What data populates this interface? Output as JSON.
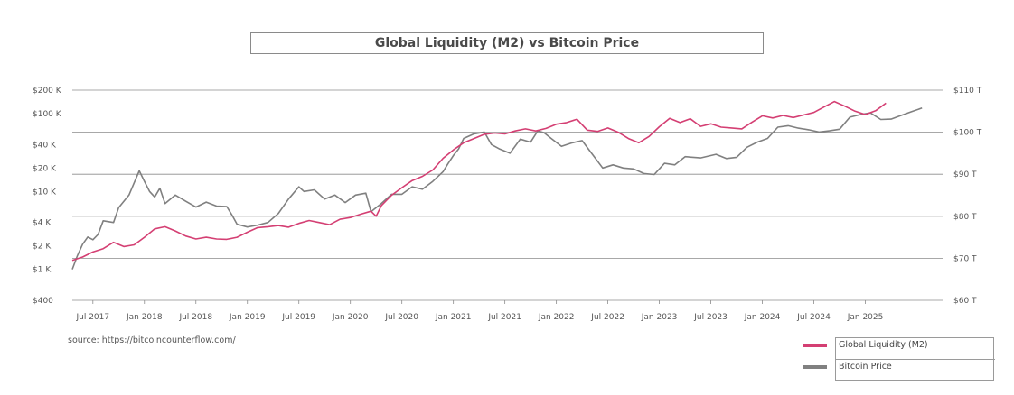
{
  "chart_data": {
    "type": "line",
    "title": "Global Liquidity (M2) vs Bitcoin Price",
    "source": "source: https://bitcoincounterflow.com/",
    "y_left": {
      "scale": "log",
      "range": [
        400,
        200000
      ],
      "ticks": [
        {
          "value": 200000,
          "label": "$200 K"
        },
        {
          "value": 100000,
          "label": "$100 K"
        },
        {
          "value": 40000,
          "label": "$40 K"
        },
        {
          "value": 20000,
          "label": "$20 K"
        },
        {
          "value": 10000,
          "label": "$10 K"
        },
        {
          "value": 4000,
          "label": "$4 K"
        },
        {
          "value": 2000,
          "label": "$2 K"
        },
        {
          "value": 1000,
          "label": "$1 K"
        },
        {
          "value": 400,
          "label": "$400"
        }
      ]
    },
    "y_right": {
      "scale": "linear",
      "range": [
        60,
        110
      ],
      "unit": "T",
      "ticks": [
        {
          "value": 110,
          "label": "$110 T"
        },
        {
          "value": 100,
          "label": "$100 T"
        },
        {
          "value": 90,
          "label": "$90 T"
        },
        {
          "value": 80,
          "label": "$80 T"
        },
        {
          "value": 70,
          "label": "$70 T"
        },
        {
          "value": 60,
          "label": "$60 T"
        }
      ]
    },
    "x_axis": {
      "range": [
        2017.3,
        2025.75
      ],
      "ticks": [
        {
          "value": 2017.5,
          "label": "Jul 2017"
        },
        {
          "value": 2018.0,
          "label": "Jan 2018"
        },
        {
          "value": 2018.5,
          "label": "Jul 2018"
        },
        {
          "value": 2019.0,
          "label": "Jan 2019"
        },
        {
          "value": 2019.5,
          "label": "Jul 2019"
        },
        {
          "value": 2020.0,
          "label": "Jan 2020"
        },
        {
          "value": 2020.5,
          "label": "Jul 2020"
        },
        {
          "value": 2021.0,
          "label": "Jan 2021"
        },
        {
          "value": 2021.5,
          "label": "Jul 2021"
        },
        {
          "value": 2022.0,
          "label": "Jan 2022"
        },
        {
          "value": 2022.5,
          "label": "Jul 2022"
        },
        {
          "value": 2023.0,
          "label": "Jan 2023"
        },
        {
          "value": 2023.5,
          "label": "Jul 2023"
        },
        {
          "value": 2024.0,
          "label": "Jan 2024"
        },
        {
          "value": 2024.5,
          "label": "Jul 2024"
        },
        {
          "value": 2025.0,
          "label": "Jan 2025"
        }
      ]
    },
    "gridlines_at_right_values": [
      110,
      100,
      90,
      80,
      70
    ],
    "series": [
      {
        "name": "Global Liquidity (M2)",
        "axis": "right",
        "color": "#d43f73",
        "unit": "$ T",
        "points": [
          [
            2017.3,
            69.5
          ],
          [
            2017.4,
            70.3
          ],
          [
            2017.5,
            71.5
          ],
          [
            2017.6,
            72.3
          ],
          [
            2017.7,
            73.8
          ],
          [
            2017.8,
            72.8
          ],
          [
            2017.9,
            73.2
          ],
          [
            2018.0,
            75.0
          ],
          [
            2018.1,
            77.0
          ],
          [
            2018.2,
            77.5
          ],
          [
            2018.3,
            76.5
          ],
          [
            2018.4,
            75.3
          ],
          [
            2018.5,
            74.6
          ],
          [
            2018.6,
            75.0
          ],
          [
            2018.7,
            74.6
          ],
          [
            2018.8,
            74.5
          ],
          [
            2018.9,
            75.0
          ],
          [
            2019.0,
            76.2
          ],
          [
            2019.1,
            77.3
          ],
          [
            2019.2,
            77.5
          ],
          [
            2019.3,
            77.8
          ],
          [
            2019.4,
            77.4
          ],
          [
            2019.5,
            78.3
          ],
          [
            2019.6,
            79.0
          ],
          [
            2019.7,
            78.5
          ],
          [
            2019.8,
            78.0
          ],
          [
            2019.9,
            79.3
          ],
          [
            2020.0,
            79.7
          ],
          [
            2020.1,
            80.5
          ],
          [
            2020.2,
            81.2
          ],
          [
            2020.25,
            80.0
          ],
          [
            2020.3,
            82.5
          ],
          [
            2020.4,
            85.0
          ],
          [
            2020.5,
            86.8
          ],
          [
            2020.6,
            88.5
          ],
          [
            2020.7,
            89.5
          ],
          [
            2020.8,
            91.0
          ],
          [
            2020.9,
            93.8
          ],
          [
            2021.0,
            95.8
          ],
          [
            2021.1,
            97.5
          ],
          [
            2021.2,
            98.5
          ],
          [
            2021.3,
            99.5
          ],
          [
            2021.4,
            99.8
          ],
          [
            2021.5,
            99.6
          ],
          [
            2021.6,
            100.3
          ],
          [
            2021.7,
            100.8
          ],
          [
            2021.8,
            100.3
          ],
          [
            2021.9,
            100.9
          ],
          [
            2022.0,
            101.9
          ],
          [
            2022.1,
            102.3
          ],
          [
            2022.2,
            103.1
          ],
          [
            2022.3,
            100.5
          ],
          [
            2022.4,
            100.2
          ],
          [
            2022.5,
            101.0
          ],
          [
            2022.6,
            100.0
          ],
          [
            2022.7,
            98.5
          ],
          [
            2022.8,
            97.5
          ],
          [
            2022.9,
            99.0
          ],
          [
            2023.0,
            101.3
          ],
          [
            2023.1,
            103.3
          ],
          [
            2023.2,
            102.3
          ],
          [
            2023.3,
            103.2
          ],
          [
            2023.4,
            101.4
          ],
          [
            2023.5,
            102.0
          ],
          [
            2023.6,
            101.2
          ],
          [
            2023.7,
            101.0
          ],
          [
            2023.8,
            100.8
          ],
          [
            2023.9,
            102.4
          ],
          [
            2024.0,
            103.9
          ],
          [
            2024.1,
            103.4
          ],
          [
            2024.2,
            104.0
          ],
          [
            2024.3,
            103.5
          ],
          [
            2024.4,
            104.1
          ],
          [
            2024.5,
            104.7
          ],
          [
            2024.6,
            106.0
          ],
          [
            2024.7,
            107.3
          ],
          [
            2024.8,
            106.2
          ],
          [
            2024.9,
            105.0
          ],
          [
            2025.0,
            104.2
          ],
          [
            2025.1,
            105.1
          ],
          [
            2025.2,
            106.9
          ]
        ]
      },
      {
        "name": "Bitcoin Price",
        "axis": "left",
        "color": "#808080",
        "unit": "$",
        "points": [
          [
            2017.3,
            1000
          ],
          [
            2017.35,
            1500
          ],
          [
            2017.4,
            2100
          ],
          [
            2017.45,
            2600
          ],
          [
            2017.5,
            2400
          ],
          [
            2017.55,
            2800
          ],
          [
            2017.6,
            4200
          ],
          [
            2017.7,
            4000
          ],
          [
            2017.75,
            6200
          ],
          [
            2017.85,
            9000
          ],
          [
            2017.95,
            18500
          ],
          [
            2018.0,
            13500
          ],
          [
            2018.05,
            10000
          ],
          [
            2018.1,
            8500
          ],
          [
            2018.15,
            11000
          ],
          [
            2018.2,
            7000
          ],
          [
            2018.3,
            9000
          ],
          [
            2018.4,
            7500
          ],
          [
            2018.5,
            6300
          ],
          [
            2018.6,
            7300
          ],
          [
            2018.7,
            6500
          ],
          [
            2018.8,
            6400
          ],
          [
            2018.85,
            5000
          ],
          [
            2018.9,
            3800
          ],
          [
            2019.0,
            3500
          ],
          [
            2019.1,
            3700
          ],
          [
            2019.2,
            4000
          ],
          [
            2019.3,
            5200
          ],
          [
            2019.4,
            8000
          ],
          [
            2019.5,
            11500
          ],
          [
            2019.55,
            10000
          ],
          [
            2019.65,
            10500
          ],
          [
            2019.75,
            8000
          ],
          [
            2019.85,
            9000
          ],
          [
            2019.95,
            7200
          ],
          [
            2020.05,
            9000
          ],
          [
            2020.15,
            9500
          ],
          [
            2020.2,
            5500
          ],
          [
            2020.3,
            7000
          ],
          [
            2020.4,
            9200
          ],
          [
            2020.5,
            9200
          ],
          [
            2020.6,
            11500
          ],
          [
            2020.7,
            10700
          ],
          [
            2020.8,
            13500
          ],
          [
            2020.9,
            18000
          ],
          [
            2020.95,
            23000
          ],
          [
            2021.0,
            29000
          ],
          [
            2021.05,
            35000
          ],
          [
            2021.1,
            48000
          ],
          [
            2021.2,
            55000
          ],
          [
            2021.3,
            58000
          ],
          [
            2021.37,
            40000
          ],
          [
            2021.45,
            35000
          ],
          [
            2021.55,
            31000
          ],
          [
            2021.65,
            47000
          ],
          [
            2021.75,
            43000
          ],
          [
            2021.82,
            60000
          ],
          [
            2021.88,
            57000
          ],
          [
            2021.95,
            48000
          ],
          [
            2022.05,
            38000
          ],
          [
            2022.15,
            42000
          ],
          [
            2022.25,
            45000
          ],
          [
            2022.35,
            30000
          ],
          [
            2022.45,
            20000
          ],
          [
            2022.55,
            22000
          ],
          [
            2022.65,
            20000
          ],
          [
            2022.75,
            19500
          ],
          [
            2022.85,
            17000
          ],
          [
            2022.95,
            16500
          ],
          [
            2023.05,
            23000
          ],
          [
            2023.15,
            22000
          ],
          [
            2023.25,
            28000
          ],
          [
            2023.4,
            27000
          ],
          [
            2023.55,
            30000
          ],
          [
            2023.65,
            26500
          ],
          [
            2023.75,
            27500
          ],
          [
            2023.85,
            37000
          ],
          [
            2023.95,
            43000
          ],
          [
            2024.05,
            48000
          ],
          [
            2024.15,
            67000
          ],
          [
            2024.25,
            70000
          ],
          [
            2024.35,
            65000
          ],
          [
            2024.45,
            62000
          ],
          [
            2024.55,
            58000
          ],
          [
            2024.65,
            60000
          ],
          [
            2024.75,
            63000
          ],
          [
            2024.85,
            90000
          ],
          [
            2024.95,
            97000
          ],
          [
            2025.05,
            102000
          ],
          [
            2025.15,
            84000
          ],
          [
            2025.25,
            85000
          ],
          [
            2025.35,
            95000
          ],
          [
            2025.45,
            106000
          ],
          [
            2025.55,
            118000
          ]
        ]
      }
    ],
    "legend_position": "bottom-right"
  },
  "legend": {
    "items": [
      {
        "label": "Global Liquidity (M2)",
        "color": "#d43f73"
      },
      {
        "label": "Bitcoin Price",
        "color": "#808080"
      }
    ]
  }
}
